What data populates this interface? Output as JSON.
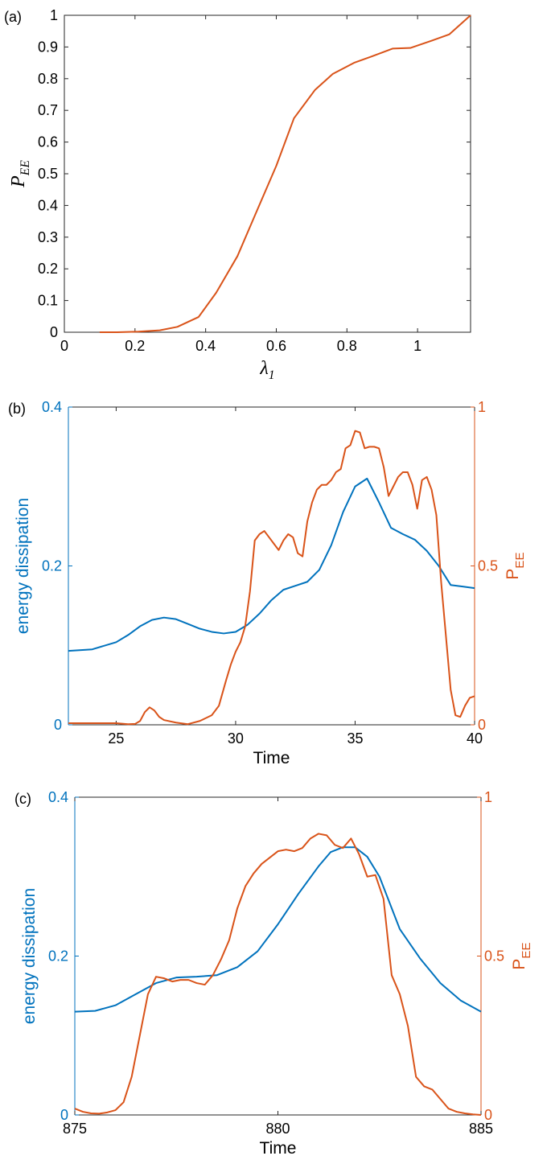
{
  "colors": {
    "orange": "#D95319",
    "blue": "#0072BD",
    "axis": "#262626"
  },
  "chart_data": [
    {
      "type": "line",
      "panel_label": "(a)",
      "xlabel": "λ",
      "xlabel_sub": "1",
      "ylabel": "P",
      "ylabel_sub": "EE",
      "xlim": [
        0,
        1.15
      ],
      "ylim": [
        0,
        1
      ],
      "xticks": [
        0,
        0.2,
        0.4,
        0.6,
        0.8,
        1
      ],
      "xtick_labels": [
        "0",
        "0.2",
        "0.4",
        "0.6",
        "0.8",
        "1"
      ],
      "yticks": [
        0,
        0.1,
        0.2,
        0.3,
        0.4,
        0.5,
        0.6,
        0.7,
        0.8,
        0.9,
        1
      ],
      "ytick_labels": [
        "0",
        "0.1",
        "0.2",
        "0.3",
        "0.4",
        "0.5",
        "0.6",
        "0.7",
        "0.8",
        "0.9",
        "1"
      ],
      "series": [
        {
          "color": "orange",
          "x": [
            0.1,
            0.15,
            0.21,
            0.27,
            0.32,
            0.38,
            0.43,
            0.49,
            0.54,
            0.6,
            0.65,
            0.71,
            0.76,
            0.82,
            0.87,
            0.93,
            0.98,
            1.04,
            1.09,
            1.15
          ],
          "y": [
            0,
            0,
            0.002,
            0.006,
            0.017,
            0.048,
            0.125,
            0.24,
            0.37,
            0.525,
            0.675,
            0.765,
            0.815,
            0.85,
            0.87,
            0.895,
            0.897,
            0.92,
            0.94,
            1.0
          ]
        }
      ]
    },
    {
      "type": "line",
      "panel_label": "(b)",
      "xlabel": "Time",
      "ylabel_left": "energy dissipation",
      "ylabel_right": "P",
      "ylabel_right_sub": "EE",
      "xlim": [
        23,
        40
      ],
      "ylim_left": [
        0,
        0.4
      ],
      "ylim_right": [
        0,
        1
      ],
      "xticks": [
        25,
        30,
        35,
        40
      ],
      "xtick_labels": [
        "25",
        "30",
        "35",
        "40"
      ],
      "yticks_left": [
        0,
        0.2,
        0.4
      ],
      "ytick_labels_left": [
        "0",
        "0.2",
        "0.4"
      ],
      "yticks_right": [
        0,
        0.5,
        1
      ],
      "ytick_labels_right": [
        "0",
        "0.5",
        "1"
      ],
      "series": [
        {
          "axis": "left",
          "color": "blue",
          "x": [
            23,
            24,
            25,
            25.5,
            26,
            26.5,
            27,
            27.5,
            28,
            28.5,
            29,
            29.5,
            30,
            30.5,
            31,
            31.5,
            32,
            32.5,
            33,
            33.5,
            34,
            34.5,
            35,
            35.5,
            36,
            36.5,
            37,
            37.5,
            38,
            38.5,
            39,
            39.5,
            40
          ],
          "y": [
            0.093,
            0.095,
            0.104,
            0.113,
            0.124,
            0.132,
            0.135,
            0.133,
            0.127,
            0.121,
            0.117,
            0.115,
            0.117,
            0.126,
            0.14,
            0.157,
            0.17,
            0.175,
            0.18,
            0.195,
            0.226,
            0.268,
            0.3,
            0.31,
            0.28,
            0.248,
            0.24,
            0.233,
            0.219,
            0.2,
            0.176,
            0.174,
            0.172
          ]
        },
        {
          "axis": "right",
          "color": "orange",
          "x": [
            23,
            24,
            25,
            25.5,
            25.8,
            26,
            26.2,
            26.4,
            26.6,
            26.8,
            27,
            27.5,
            28,
            28.5,
            29,
            29.3,
            29.6,
            29.8,
            30,
            30.2,
            30.4,
            30.6,
            30.8,
            31,
            31.2,
            31.4,
            31.6,
            31.8,
            32,
            32.2,
            32.4,
            32.6,
            32.8,
            33,
            33.2,
            33.4,
            33.6,
            33.8,
            34,
            34.2,
            34.4,
            34.6,
            34.8,
            35,
            35.2,
            35.4,
            35.6,
            35.8,
            36,
            36.2,
            36.4,
            36.6,
            36.8,
            37,
            37.2,
            37.4,
            37.6,
            37.8,
            38,
            38.2,
            38.4,
            38.6,
            38.8,
            39,
            39.2,
            39.4,
            39.6,
            39.8,
            40
          ],
          "y": [
            0.005,
            0.005,
            0.005,
            0.002,
            0.003,
            0.012,
            0.04,
            0.055,
            0.045,
            0.025,
            0.015,
            0.007,
            0.002,
            0.012,
            0.03,
            0.06,
            0.14,
            0.19,
            0.23,
            0.26,
            0.31,
            0.42,
            0.58,
            0.6,
            0.61,
            0.59,
            0.57,
            0.55,
            0.58,
            0.6,
            0.59,
            0.54,
            0.53,
            0.64,
            0.7,
            0.74,
            0.755,
            0.755,
            0.77,
            0.795,
            0.805,
            0.87,
            0.88,
            0.925,
            0.92,
            0.87,
            0.875,
            0.875,
            0.87,
            0.81,
            0.72,
            0.75,
            0.78,
            0.795,
            0.795,
            0.755,
            0.68,
            0.77,
            0.78,
            0.74,
            0.66,
            0.45,
            0.28,
            0.11,
            0.03,
            0.025,
            0.06,
            0.085,
            0.09
          ]
        }
      ]
    },
    {
      "type": "line",
      "panel_label": "(c)",
      "xlabel": "Time",
      "ylabel_left": "energy dissipation",
      "ylabel_right": "P",
      "ylabel_right_sub": "EE",
      "xlim": [
        875,
        885
      ],
      "ylim_left": [
        0,
        0.4
      ],
      "ylim_right": [
        0,
        1
      ],
      "xticks": [
        875,
        880,
        885
      ],
      "xtick_labels": [
        "875",
        "880",
        "885"
      ],
      "yticks_left": [
        0,
        0.2,
        0.4
      ],
      "ytick_labels_left": [
        "0",
        "0.2",
        "0.4"
      ],
      "yticks_right": [
        0,
        0.5,
        1
      ],
      "ytick_labels_right": [
        "0",
        "0.5",
        "1"
      ],
      "series": [
        {
          "axis": "left",
          "color": "blue",
          "x": [
            875,
            875.5,
            876,
            876.5,
            877,
            877.5,
            878,
            878.5,
            879,
            879.5,
            880,
            880.5,
            881,
            881.3,
            881.6,
            881.9,
            882.2,
            882.5,
            883,
            883.5,
            884,
            884.5,
            885
          ],
          "y": [
            0.13,
            0.131,
            0.138,
            0.152,
            0.166,
            0.173,
            0.174,
            0.176,
            0.186,
            0.206,
            0.24,
            0.278,
            0.313,
            0.331,
            0.337,
            0.337,
            0.325,
            0.3,
            0.234,
            0.197,
            0.166,
            0.144,
            0.13
          ]
        },
        {
          "axis": "right",
          "color": "orange",
          "x": [
            875,
            875.2,
            875.4,
            875.6,
            875.8,
            876,
            876.2,
            876.4,
            876.6,
            876.8,
            877,
            877.2,
            877.4,
            877.6,
            877.8,
            878,
            878.2,
            878.4,
            878.6,
            878.8,
            879,
            879.2,
            879.4,
            879.6,
            879.8,
            880,
            880.2,
            880.4,
            880.6,
            880.8,
            881,
            881.2,
            881.4,
            881.6,
            881.8,
            882,
            882.2,
            882.4,
            882.6,
            882.8,
            883,
            883.2,
            883.4,
            883.6,
            883.8,
            884,
            884.2,
            884.4,
            884.6,
            884.8,
            885
          ],
          "y": [
            0.02,
            0.01,
            0.005,
            0.004,
            0.008,
            0.015,
            0.04,
            0.12,
            0.25,
            0.38,
            0.435,
            0.43,
            0.42,
            0.425,
            0.425,
            0.415,
            0.41,
            0.44,
            0.49,
            0.55,
            0.65,
            0.72,
            0.76,
            0.79,
            0.81,
            0.83,
            0.835,
            0.83,
            0.84,
            0.87,
            0.885,
            0.88,
            0.85,
            0.84,
            0.87,
            0.82,
            0.75,
            0.755,
            0.68,
            0.44,
            0.38,
            0.28,
            0.12,
            0.09,
            0.08,
            0.05,
            0.02,
            0.01,
            0.005,
            0.002,
            0.0
          ]
        }
      ]
    }
  ]
}
